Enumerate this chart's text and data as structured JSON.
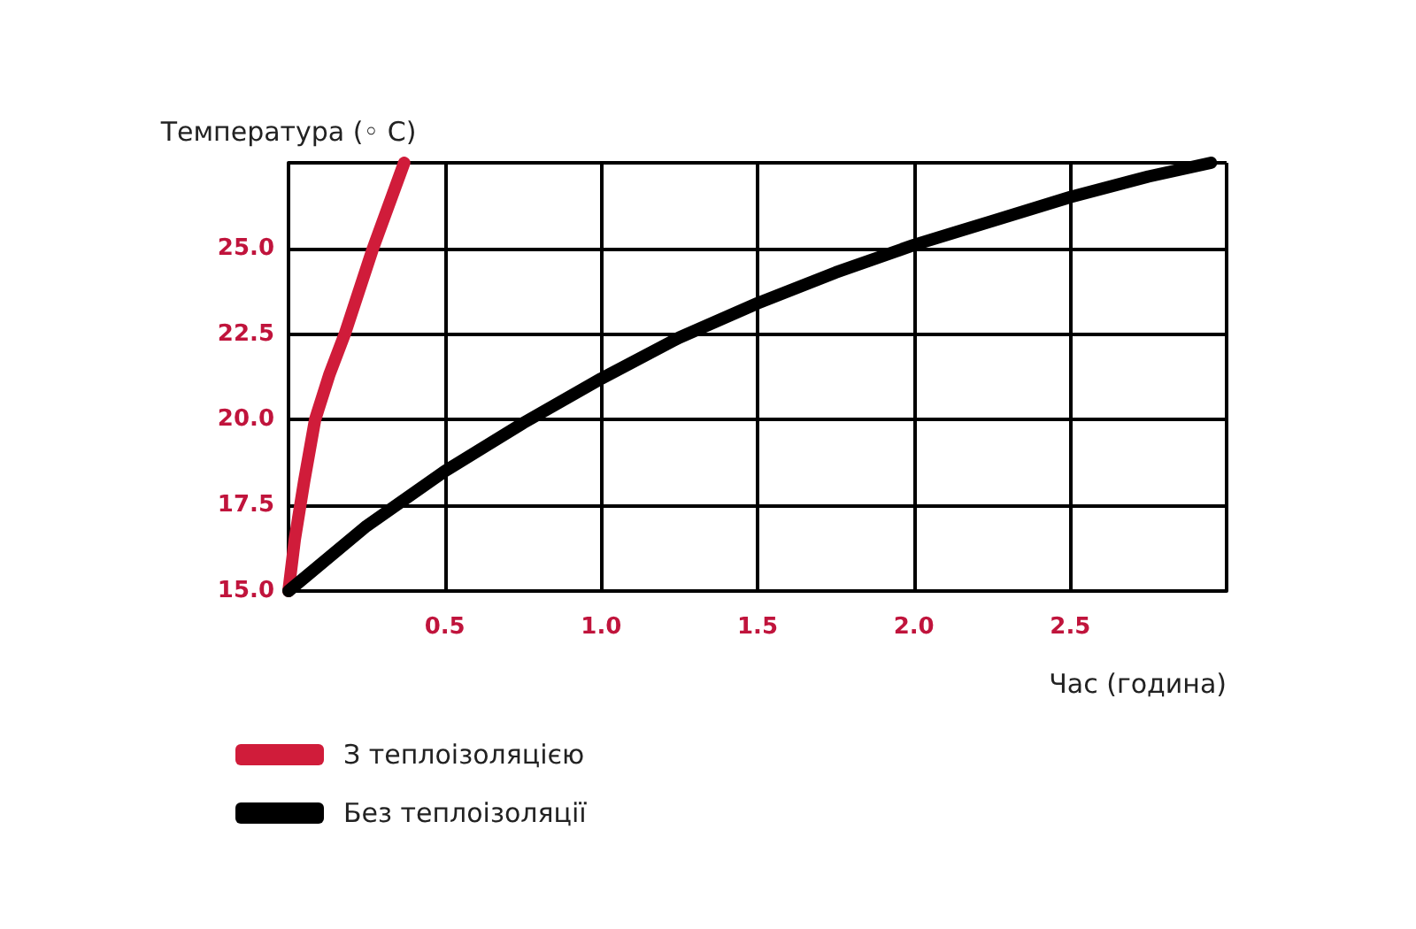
{
  "chart_data": {
    "type": "line",
    "xlabel": "Час (година)",
    "ylabel": "Температура (◦ C)",
    "xlim": [
      0,
      3
    ],
    "xticks": [
      {
        "value": 0,
        "label": null
      },
      {
        "value": 0.5,
        "label": "0.5"
      },
      {
        "value": 1,
        "label": "1.0"
      },
      {
        "value": 1.5,
        "label": "1.5"
      },
      {
        "value": 2,
        "label": "2.0"
      },
      {
        "value": 2.5,
        "label": "2.5"
      },
      {
        "value": 3,
        "label": null
      }
    ],
    "ylim": [
      15,
      27.5
    ],
    "yticks": [
      {
        "value": 15,
        "label": "15.0"
      },
      {
        "value": 17.5,
        "label": "17.5"
      },
      {
        "value": 20,
        "label": "20.0"
      },
      {
        "value": 22.5,
        "label": "22.5"
      },
      {
        "value": 25,
        "label": "25.0"
      },
      {
        "value": 27.5,
        "label": null
      }
    ],
    "grid": true,
    "legend": "bottom left",
    "marker": "none",
    "line_style": "solid",
    "series": [
      {
        "name": "З теплоізоляцією",
        "color": "#d01c3a",
        "x": [
          0,
          0.02,
          0.05,
          0.085,
          0.13,
          0.18,
          0.27,
          0.37
        ],
        "values": [
          15,
          16.5,
          18.2,
          20,
          21.3,
          22.5,
          25,
          27.5
        ]
      },
      {
        "name": "Без теплоізоляції",
        "color": "#000000",
        "x": [
          0,
          0.25,
          0.5,
          0.75,
          1.0,
          1.25,
          1.5,
          1.75,
          2.0,
          2.25,
          2.5,
          2.75,
          2.95
        ],
        "values": [
          15,
          16.9,
          18.5,
          19.9,
          21.2,
          22.4,
          23.4,
          24.3,
          25.1,
          25.8,
          26.5,
          27.1,
          27.5
        ]
      }
    ]
  }
}
